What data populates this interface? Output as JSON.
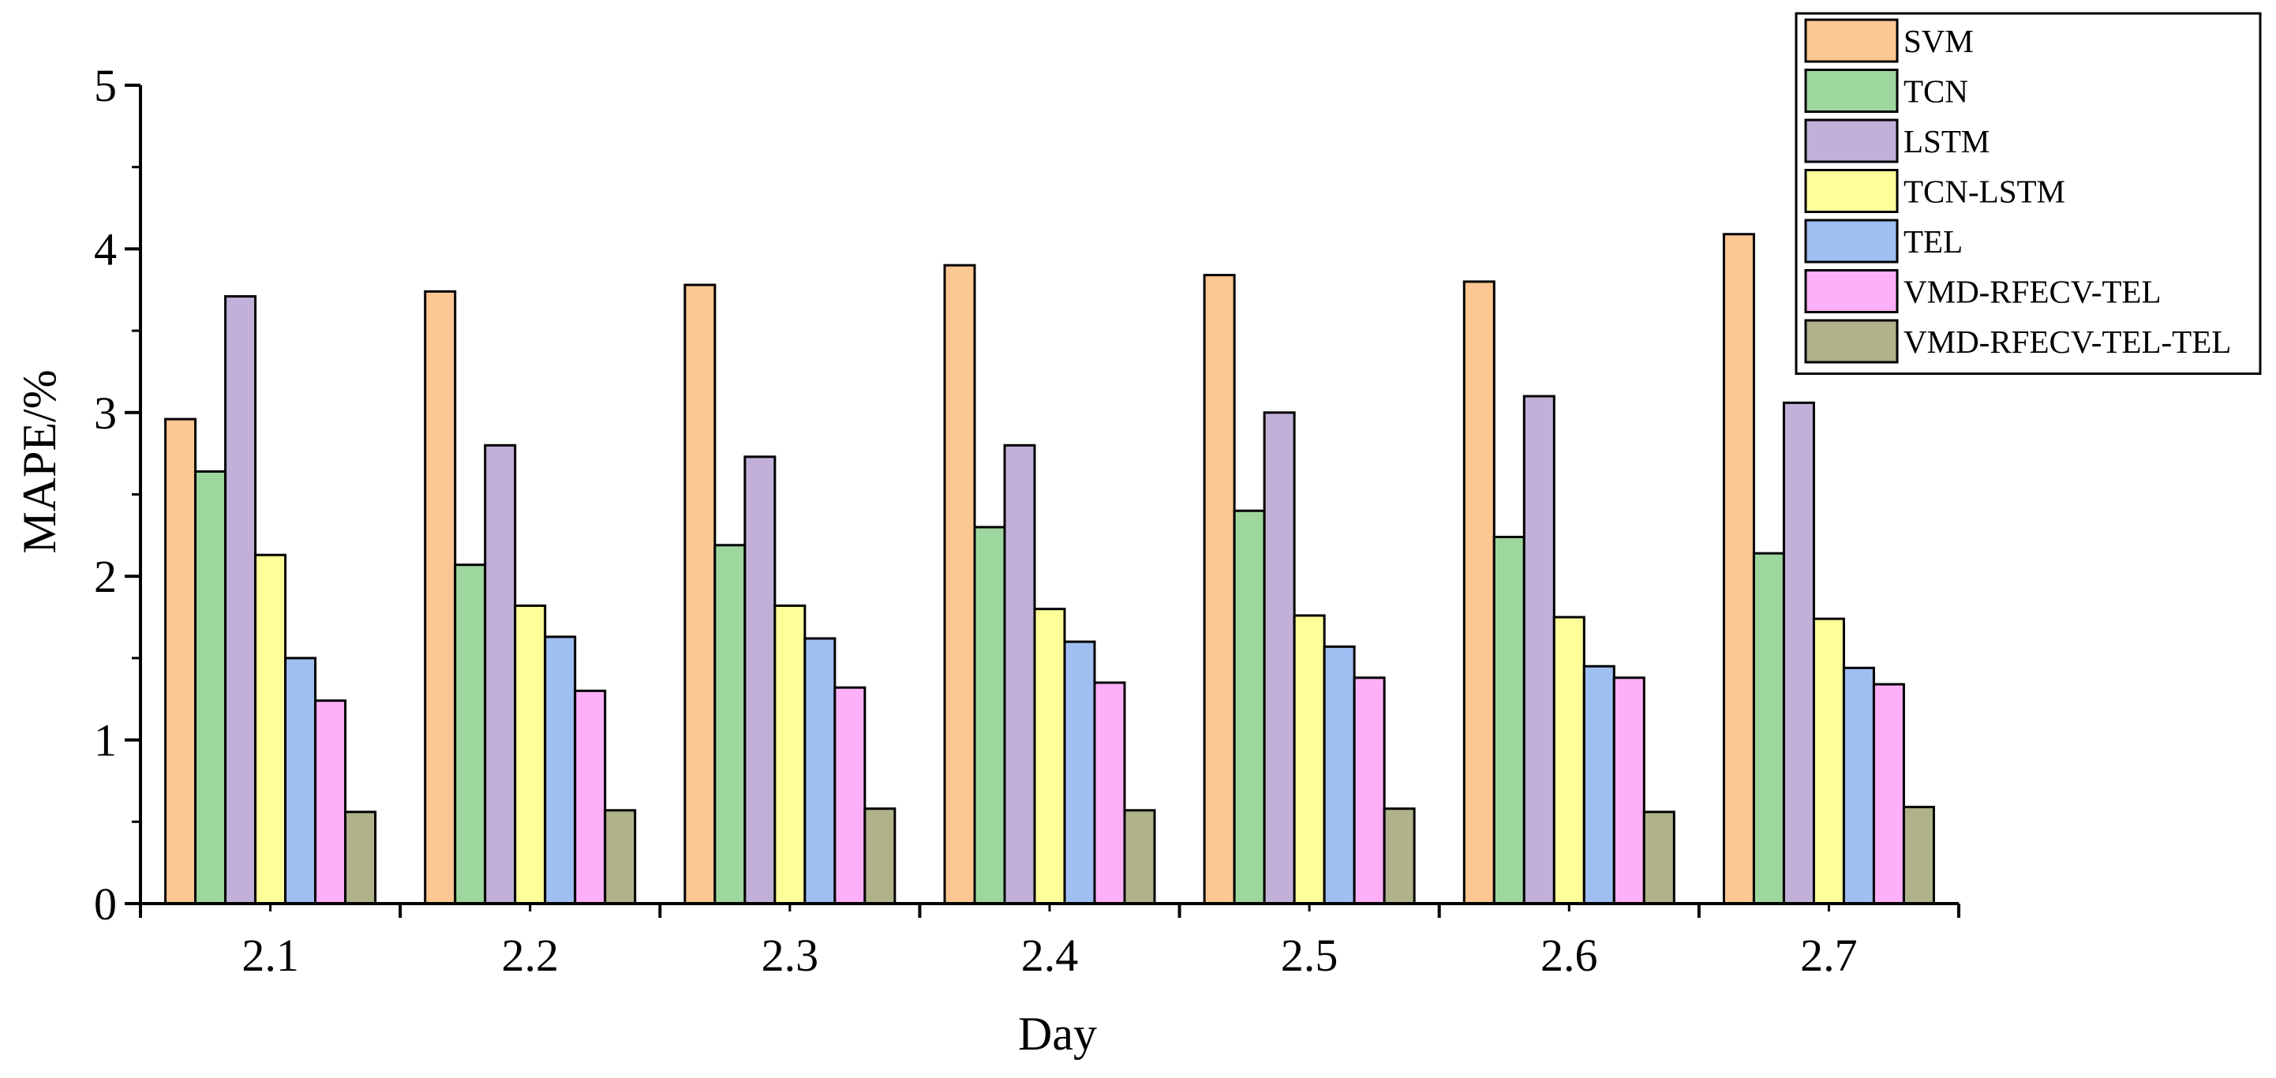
{
  "chart_data": {
    "type": "bar",
    "title": "",
    "xlabel": "Day",
    "ylabel": "MAPE/%",
    "ylim": [
      0,
      5
    ],
    "yticks": [
      "0",
      "1",
      "2",
      "3",
      "4",
      "5"
    ],
    "categories": [
      "2.1",
      "2.2",
      "2.3",
      "2.4",
      "2.5",
      "2.6",
      "2.7"
    ],
    "legend_position": "top-right",
    "series": [
      {
        "name": "SVM",
        "color": "#FDC793",
        "values": [
          2.96,
          3.74,
          3.78,
          3.9,
          3.84,
          3.8,
          4.09
        ]
      },
      {
        "name": "TCN",
        "color": "#9ED79E",
        "values": [
          2.64,
          2.07,
          2.19,
          2.3,
          2.4,
          2.24,
          2.14
        ]
      },
      {
        "name": "LSTM",
        "color": "#C1B0D8",
        "values": [
          3.71,
          2.8,
          2.73,
          2.8,
          3.0,
          3.1,
          3.06
        ]
      },
      {
        "name": "TCN-LSTM",
        "color": "#FFFF99",
        "values": [
          2.13,
          1.82,
          1.82,
          1.8,
          1.76,
          1.75,
          1.74
        ]
      },
      {
        "name": "TEL",
        "color": "#9FBEF2",
        "values": [
          1.5,
          1.63,
          1.62,
          1.6,
          1.57,
          1.45,
          1.44
        ]
      },
      {
        "name": "VMD-RFECV-TEL",
        "color": "#FDB0F7",
        "values": [
          1.24,
          1.3,
          1.32,
          1.35,
          1.38,
          1.38,
          1.34
        ]
      },
      {
        "name": "VMD-RFECV-TEL-TEL",
        "color": "#B0B38A",
        "values": [
          0.56,
          0.57,
          0.58,
          0.57,
          0.58,
          0.56,
          0.59
        ]
      }
    ]
  }
}
